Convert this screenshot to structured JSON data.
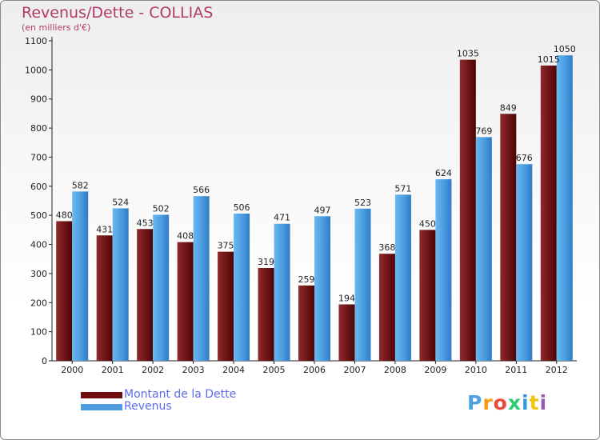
{
  "header": {
    "title": "Revenus/Dette - COLLIAS",
    "subtitle": "(en milliers d'€)"
  },
  "chart_data": {
    "type": "bar",
    "categories": [
      "2000",
      "2001",
      "2002",
      "2003",
      "2004",
      "2005",
      "2006",
      "2007",
      "2008",
      "2009",
      "2010",
      "2011",
      "2012"
    ],
    "series": [
      {
        "name": "Montant de la Dette",
        "color": "#6e0e10",
        "values": [
          480,
          431,
          453,
          408,
          375,
          319,
          259,
          194,
          368,
          450,
          1035,
          849,
          1015
        ]
      },
      {
        "name": "Revenus",
        "color": "#4a9be0",
        "values": [
          582,
          524,
          502,
          566,
          506,
          471,
          497,
          523,
          571,
          624,
          769,
          676,
          1050
        ]
      }
    ],
    "title": "Revenus/Dette - COLLIAS",
    "ylabel": "(en milliers d'€)",
    "xlabel": "",
    "ylim": [
      0,
      1100
    ],
    "yticks": [
      0,
      100,
      200,
      300,
      400,
      500,
      600,
      700,
      800,
      900,
      1000,
      1100
    ],
    "grid": false,
    "legend": "bottom-left"
  },
  "legend": {
    "items": [
      {
        "label": "Montant de la Dette",
        "color": "#6e0e10"
      },
      {
        "label": "Revenus",
        "color": "#4a9be0"
      }
    ]
  },
  "logo": {
    "letters": [
      "P",
      "r",
      "o",
      "x",
      "i",
      "t",
      "i"
    ],
    "colors": [
      "#4aa3df",
      "#f39c12",
      "#e74c3c",
      "#2ecc71",
      "#3498db",
      "#f1c40f",
      "#9b59b6"
    ]
  }
}
